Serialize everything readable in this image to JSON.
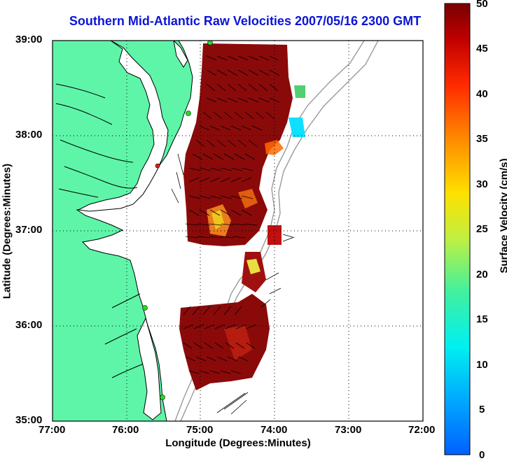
{
  "title": "Southern Mid-Atlantic Raw Velocities 2007/05/16 2300 GMT",
  "x_axis": {
    "label": "Longitude (Degrees:Minutes)",
    "ticks": [
      "77:00",
      "76:00",
      "75:00",
      "74:00",
      "73:00",
      "72:00"
    ]
  },
  "y_axis": {
    "label": "Latitude (Degrees:Minutes)",
    "ticks": [
      "39:00",
      "38:00",
      "37:00",
      "36:00",
      "35:00"
    ]
  },
  "colorbar": {
    "label": "Surface Velocity (cm/s)",
    "ticks": [
      "50",
      "45",
      "40",
      "35",
      "30",
      "25",
      "20",
      "15",
      "10",
      "5",
      "0"
    ],
    "range": [
      0,
      50
    ],
    "colormap": "jet"
  },
  "colors": {
    "title": "#0a14d6",
    "land": "#5ef5a8",
    "coastline": "#000000",
    "bathymetry": "#9a9a9a",
    "station": "#22dd22",
    "station_alt": "#e02020",
    "vectors": "#000000"
  },
  "map_extent": {
    "lon": [
      -77,
      -72
    ],
    "lat": [
      35,
      39
    ]
  },
  "gridlines": "dotted"
}
